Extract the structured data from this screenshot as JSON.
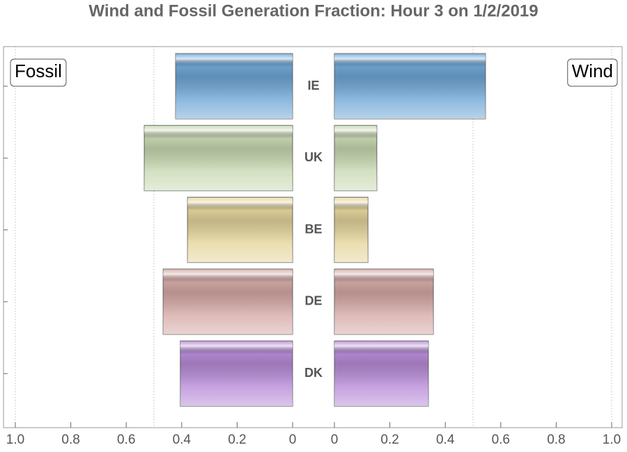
{
  "chart_data": {
    "type": "butterfly",
    "title": "Wind and Fossil Generation Fraction: Hour 3 on 1/2/2019",
    "categories": [
      "IE",
      "UK",
      "BE",
      "DE",
      "DK"
    ],
    "colors": [
      "#6fa7d6",
      "#c9d9b2",
      "#e5d59c",
      "#d5a9a6",
      "#b88bd8"
    ],
    "series": [
      {
        "name": "Fossil",
        "values": [
          0.422,
          0.535,
          0.379,
          0.467,
          0.405
        ]
      },
      {
        "name": "Wind",
        "values": [
          0.545,
          0.153,
          0.121,
          0.357,
          0.339
        ]
      }
    ],
    "xlim": [
      0,
      1
    ],
    "xticks": [
      {
        "value": 1,
        "label": "1.0"
      },
      0.8,
      0.6,
      0.4,
      0.2,
      0
    ],
    "grid_lines": [
      0.5,
      1
    ]
  }
}
